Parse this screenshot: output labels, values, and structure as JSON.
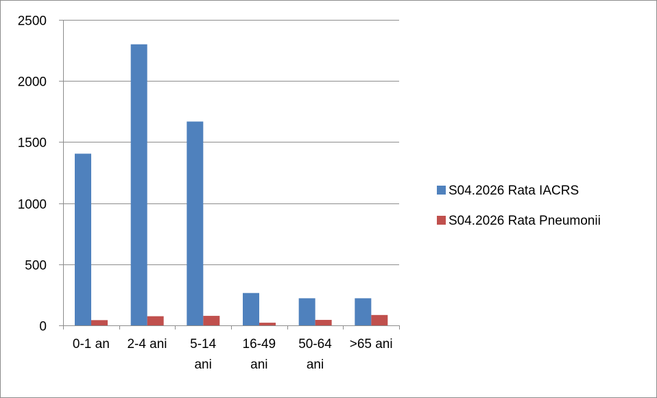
{
  "chart_data": {
    "type": "bar",
    "categories": [
      [
        "0-1 an"
      ],
      [
        "2-4 ani"
      ],
      [
        "5-14",
        "ani"
      ],
      [
        "16-49",
        "ani"
      ],
      [
        "50-64",
        "ani"
      ],
      [
        ">65 ani"
      ]
    ],
    "series": [
      {
        "name": "S04.2026 Rata IACRS",
        "color": "#4f81bd",
        "values": [
          1405,
          2300,
          1668,
          265,
          222,
          222
        ]
      },
      {
        "name": "S04.2026 Rata Pneumonii",
        "color": "#c0504d",
        "values": [
          43,
          75,
          78,
          22,
          45,
          85
        ]
      }
    ],
    "yticks": [
      0,
      500,
      1000,
      1500,
      2000,
      2500
    ],
    "ylim": [
      0,
      2500
    ],
    "grid": true,
    "legend": "right"
  }
}
